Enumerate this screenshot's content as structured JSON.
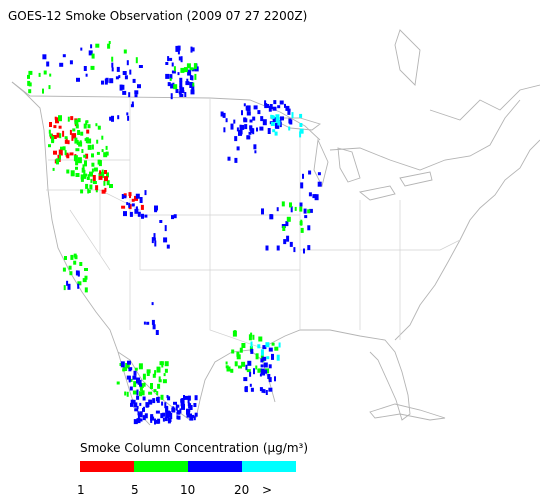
{
  "header": {
    "title": "GOES-12 Smoke Observation (2009 07 27  2200Z)"
  },
  "legend": {
    "title": "Smoke Column Concentration (μg/m³)",
    "colors": [
      "#ff0000",
      "#00ff00",
      "#0000ff",
      "#00ffff"
    ],
    "labels": [
      "1",
      "5",
      "10",
      "20",
      ">"
    ]
  }
}
